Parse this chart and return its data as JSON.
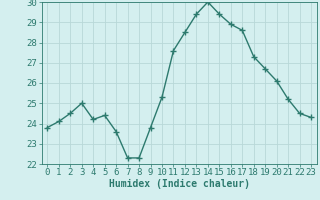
{
  "x": [
    0,
    1,
    2,
    3,
    4,
    5,
    6,
    7,
    8,
    9,
    10,
    11,
    12,
    13,
    14,
    15,
    16,
    17,
    18,
    19,
    20,
    21,
    22,
    23
  ],
  "y": [
    23.8,
    24.1,
    24.5,
    25.0,
    24.2,
    24.4,
    23.6,
    22.3,
    22.3,
    23.8,
    25.3,
    27.6,
    28.5,
    29.4,
    30.0,
    29.4,
    28.9,
    28.6,
    27.3,
    26.7,
    26.1,
    25.2,
    24.5,
    24.3
  ],
  "ylim": [
    22,
    30
  ],
  "yticks": [
    22,
    23,
    24,
    25,
    26,
    27,
    28,
    29,
    30
  ],
  "xlim": [
    -0.5,
    23.5
  ],
  "xticks": [
    0,
    1,
    2,
    3,
    4,
    5,
    6,
    7,
    8,
    9,
    10,
    11,
    12,
    13,
    14,
    15,
    16,
    17,
    18,
    19,
    20,
    21,
    22,
    23
  ],
  "xlabel": "Humidex (Indice chaleur)",
  "line_color": "#2d7a6e",
  "bg_color": "#d4efef",
  "grid_color": "#b8d8d8",
  "marker": "+",
  "marker_size": 4,
  "line_width": 1.0,
  "xlabel_fontsize": 7,
  "tick_fontsize": 6.5
}
